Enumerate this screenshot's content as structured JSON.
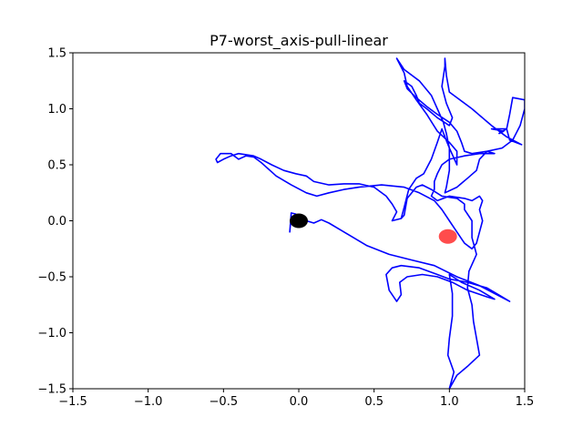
{
  "chart_data": {
    "type": "line",
    "title": "P7-worst_axis-pull-linear",
    "xlabel": "",
    "ylabel": "",
    "xlim": [
      -1.5,
      1.5
    ],
    "ylim": [
      -1.5,
      1.5
    ],
    "grid": false,
    "x_ticks": [
      -1.5,
      -1.0,
      -0.5,
      0.0,
      0.5,
      1.0,
      1.5
    ],
    "y_ticks": [
      -1.5,
      -1.0,
      -0.5,
      0.0,
      0.5,
      1.0,
      1.5
    ],
    "x_tick_labels": [
      "−1.5",
      "−1.0",
      "−0.5",
      "0.0",
      "0.5",
      "1.0",
      "1.5"
    ],
    "y_tick_labels": [
      "−1.5",
      "−1.0",
      "−0.5",
      "0.0",
      "0.5",
      "1.0",
      "1.5"
    ],
    "series": [
      {
        "color": "#0000ff",
        "points": [
          [
            -0.05,
            0.05
          ],
          [
            -0.06,
            -0.1
          ],
          [
            -0.05,
            0.07
          ],
          [
            -0.02,
            0.06
          ],
          [
            0.0,
            0.02
          ],
          [
            0.05,
            0.0
          ],
          [
            0.1,
            -0.02
          ],
          [
            0.15,
            0.01
          ],
          [
            0.2,
            -0.02
          ],
          [
            0.3,
            -0.1
          ],
          [
            0.45,
            -0.22
          ],
          [
            0.6,
            -0.3
          ],
          [
            0.75,
            -0.35
          ],
          [
            0.9,
            -0.4
          ],
          [
            1.05,
            -0.5
          ],
          [
            1.2,
            -0.58
          ],
          [
            1.3,
            -0.65
          ],
          [
            1.4,
            -0.72
          ],
          [
            1.35,
            -0.68
          ],
          [
            1.25,
            -0.6
          ],
          [
            1.12,
            -0.55
          ],
          [
            1.0,
            -0.52
          ],
          [
            0.92,
            -0.48
          ],
          [
            0.8,
            -0.42
          ],
          [
            0.68,
            -0.4
          ],
          [
            0.62,
            -0.42
          ],
          [
            0.58,
            -0.48
          ],
          [
            0.6,
            -0.62
          ],
          [
            0.65,
            -0.72
          ],
          [
            0.68,
            -0.66
          ],
          [
            0.67,
            -0.55
          ],
          [
            0.72,
            -0.5
          ],
          [
            0.82,
            -0.48
          ],
          [
            0.92,
            -0.5
          ],
          [
            1.02,
            -0.55
          ],
          [
            1.12,
            -0.62
          ],
          [
            1.25,
            -0.68
          ],
          [
            1.3,
            -0.7
          ],
          [
            1.2,
            -0.62
          ],
          [
            1.08,
            -0.55
          ],
          [
            1.0,
            -0.48
          ],
          [
            1.02,
            -0.65
          ],
          [
            1.02,
            -0.85
          ],
          [
            1.0,
            -1.05
          ],
          [
            0.99,
            -1.2
          ],
          [
            1.03,
            -1.35
          ],
          [
            1.0,
            -1.5
          ],
          [
            1.05,
            -1.38
          ],
          [
            1.12,
            -1.3
          ],
          [
            1.2,
            -1.2
          ],
          [
            1.18,
            -1.05
          ],
          [
            1.16,
            -0.9
          ],
          [
            1.15,
            -0.75
          ],
          [
            1.12,
            -0.6
          ],
          [
            1.13,
            -0.45
          ],
          [
            1.18,
            -0.3
          ],
          [
            1.15,
            -0.15
          ],
          [
            1.15,
            0.0
          ],
          [
            1.1,
            0.1
          ],
          [
            1.1,
            0.15
          ],
          [
            1.05,
            0.2
          ],
          [
            0.95,
            0.22
          ],
          [
            0.88,
            0.28
          ],
          [
            0.82,
            0.32
          ],
          [
            0.78,
            0.3
          ],
          [
            0.72,
            0.2
          ],
          [
            0.7,
            0.05
          ],
          [
            0.68,
            0.02
          ],
          [
            0.7,
            0.12
          ],
          [
            0.73,
            0.28
          ],
          [
            0.78,
            0.38
          ],
          [
            0.83,
            0.42
          ],
          [
            0.88,
            0.55
          ],
          [
            0.92,
            0.7
          ],
          [
            0.95,
            0.82
          ],
          [
            0.97,
            0.75
          ],
          [
            1.0,
            0.65
          ],
          [
            1.05,
            0.5
          ],
          [
            1.05,
            0.62
          ],
          [
            1.0,
            0.7
          ],
          [
            0.92,
            0.8
          ],
          [
            0.85,
            0.95
          ],
          [
            0.78,
            1.08
          ],
          [
            0.72,
            1.2
          ],
          [
            0.7,
            1.32
          ],
          [
            0.65,
            1.45
          ],
          [
            0.7,
            1.35
          ],
          [
            0.8,
            1.25
          ],
          [
            0.88,
            1.12
          ],
          [
            0.92,
            1.0
          ],
          [
            0.96,
            0.88
          ],
          [
            0.98,
            0.78
          ],
          [
            1.0,
            0.65
          ],
          [
            1.0,
            0.45
          ],
          [
            0.98,
            0.3
          ],
          [
            0.97,
            0.25
          ],
          [
            1.05,
            0.3
          ],
          [
            1.12,
            0.38
          ],
          [
            1.18,
            0.45
          ],
          [
            1.2,
            0.55
          ],
          [
            1.25,
            0.62
          ],
          [
            1.35,
            0.65
          ],
          [
            1.42,
            0.72
          ],
          [
            1.47,
            0.85
          ],
          [
            1.5,
            1.0
          ],
          [
            1.5,
            1.08
          ],
          [
            1.42,
            1.1
          ],
          [
            1.4,
            0.95
          ],
          [
            1.38,
            0.82
          ],
          [
            1.33,
            0.78
          ],
          [
            1.36,
            0.8
          ],
          [
            1.28,
            0.82
          ],
          [
            1.38,
            0.82
          ],
          [
            1.4,
            0.72
          ],
          [
            1.48,
            0.68
          ],
          [
            1.38,
            0.75
          ],
          [
            1.28,
            0.85
          ],
          [
            1.15,
            1.0
          ],
          [
            1.0,
            1.15
          ],
          [
            0.98,
            1.3
          ],
          [
            0.97,
            1.45
          ],
          [
            0.97,
            1.38
          ],
          [
            0.95,
            1.2
          ],
          [
            0.98,
            1.05
          ],
          [
            1.02,
            0.92
          ],
          [
            1.0,
            0.85
          ],
          [
            0.92,
            0.92
          ],
          [
            0.85,
            1.0
          ],
          [
            0.8,
            1.05
          ],
          [
            0.78,
            1.12
          ],
          [
            0.75,
            1.2
          ],
          [
            0.7,
            1.25
          ],
          [
            0.72,
            1.18
          ],
          [
            0.78,
            1.1
          ],
          [
            0.85,
            1.02
          ],
          [
            0.92,
            0.95
          ],
          [
            1.0,
            0.88
          ],
          [
            1.05,
            0.8
          ],
          [
            1.08,
            0.7
          ],
          [
            1.1,
            0.62
          ],
          [
            1.15,
            0.6
          ],
          [
            1.25,
            0.62
          ],
          [
            1.3,
            0.6
          ],
          [
            1.2,
            0.6
          ],
          [
            1.1,
            0.58
          ],
          [
            1.0,
            0.55
          ],
          [
            0.95,
            0.5
          ],
          [
            0.92,
            0.42
          ],
          [
            0.9,
            0.35
          ],
          [
            0.9,
            0.28
          ],
          [
            0.88,
            0.22
          ],
          [
            0.92,
            0.18
          ],
          [
            1.0,
            0.22
          ],
          [
            1.1,
            0.2
          ],
          [
            1.15,
            0.18
          ],
          [
            1.2,
            0.22
          ],
          [
            1.22,
            0.18
          ],
          [
            1.2,
            0.1
          ],
          [
            1.22,
            0.0
          ],
          [
            1.2,
            -0.1
          ],
          [
            1.18,
            -0.2
          ],
          [
            1.15,
            -0.25
          ],
          [
            1.1,
            -0.2
          ],
          [
            1.05,
            -0.1
          ],
          [
            1.0,
            0.0
          ],
          [
            0.95,
            0.1
          ],
          [
            0.9,
            0.18
          ],
          [
            0.8,
            0.25
          ],
          [
            0.7,
            0.3
          ],
          [
            0.55,
            0.32
          ],
          [
            0.4,
            0.3
          ],
          [
            0.3,
            0.28
          ],
          [
            0.2,
            0.25
          ],
          [
            0.12,
            0.22
          ],
          [
            0.05,
            0.25
          ],
          [
            -0.05,
            0.32
          ],
          [
            -0.15,
            0.4
          ],
          [
            -0.25,
            0.52
          ],
          [
            -0.3,
            0.57
          ],
          [
            -0.35,
            0.58
          ],
          [
            -0.4,
            0.55
          ],
          [
            -0.45,
            0.6
          ],
          [
            -0.52,
            0.6
          ],
          [
            -0.55,
            0.55
          ],
          [
            -0.54,
            0.52
          ],
          [
            -0.5,
            0.55
          ],
          [
            -0.45,
            0.58
          ],
          [
            -0.4,
            0.6
          ],
          [
            -0.3,
            0.58
          ],
          [
            -0.25,
            0.55
          ],
          [
            -0.18,
            0.5
          ],
          [
            -0.1,
            0.45
          ],
          [
            -0.02,
            0.42
          ],
          [
            0.05,
            0.4
          ],
          [
            0.1,
            0.35
          ],
          [
            0.2,
            0.32
          ],
          [
            0.3,
            0.33
          ],
          [
            0.4,
            0.33
          ],
          [
            0.5,
            0.3
          ],
          [
            0.58,
            0.22
          ],
          [
            0.62,
            0.15
          ],
          [
            0.65,
            0.08
          ],
          [
            0.62,
            0.0
          ],
          [
            0.68,
            0.02
          ]
        ]
      }
    ],
    "markers": [
      {
        "x": 0.0,
        "y": 0.0,
        "color": "#000000",
        "alpha": 1.0
      },
      {
        "x": 0.99,
        "y": -0.14,
        "color": "#ff0000",
        "alpha": 0.7
      }
    ]
  }
}
